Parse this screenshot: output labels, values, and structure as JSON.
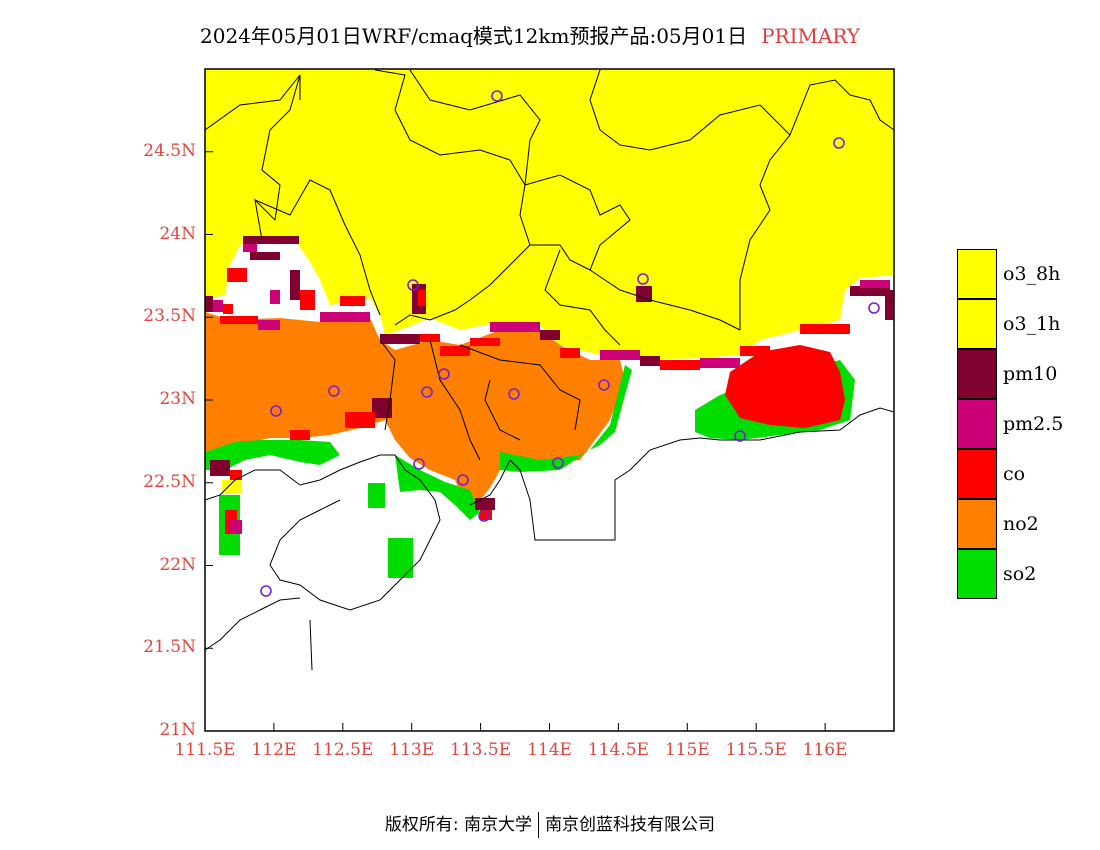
{
  "title": {
    "main": "2024年05月01日WRF/cmaq模式12km预报产品:05月01日",
    "tag": "PRIMARY"
  },
  "axes": {
    "lat_labels": [
      "24.5N",
      "24N",
      "23.5N",
      "23N",
      "22.5N",
      "22N",
      "21.5N",
      "21N"
    ],
    "lon_labels": [
      "111.5E",
      "112E",
      "112.5E",
      "113E",
      "113.5E",
      "114E",
      "114.5E",
      "115E",
      "115.5E",
      "116E"
    ],
    "lat_range": [
      21,
      25
    ],
    "lon_range": [
      111.5,
      116.5
    ]
  },
  "legend": [
    {
      "label": "o3_8h",
      "color": "#ffff00"
    },
    {
      "label": "o3_1h",
      "color": "#ffff00"
    },
    {
      "label": "pm10",
      "color": "#800030"
    },
    {
      "label": "pm2.5",
      "color": "#cc0077"
    },
    {
      "label": "co",
      "color": "#ff0000"
    },
    {
      "label": "no2",
      "color": "#ff8000"
    },
    {
      "label": "so2",
      "color": "#00dd00"
    }
  ],
  "footer": {
    "left": "版权所有: 南京大学",
    "right": "南京创蓝科技有限公司"
  }
}
